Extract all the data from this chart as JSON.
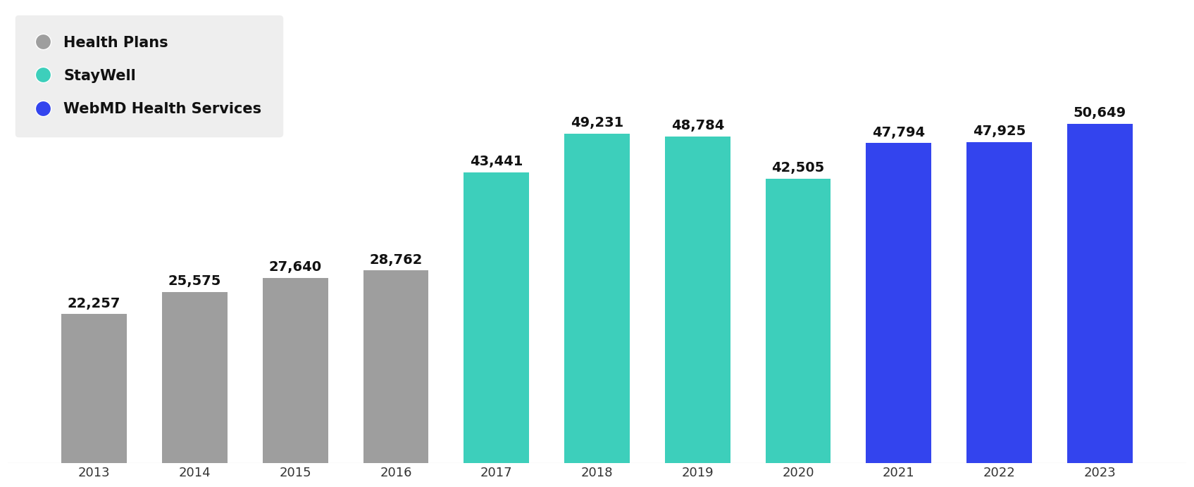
{
  "years": [
    "2013",
    "2014",
    "2015",
    "2016",
    "2017",
    "2018",
    "2019",
    "2020",
    "2021",
    "2022",
    "2023"
  ],
  "values": [
    22257,
    25575,
    27640,
    28762,
    43441,
    49231,
    48784,
    42505,
    47794,
    47925,
    50649
  ],
  "bar_colors": [
    "#9E9E9E",
    "#9E9E9E",
    "#9E9E9E",
    "#9E9E9E",
    "#3DCFBB",
    "#3DCFBB",
    "#3DCFBB",
    "#3DCFBB",
    "#3344EE",
    "#3344EE",
    "#3344EE"
  ],
  "labels": [
    "22,257",
    "25,575",
    "27,640",
    "28,762",
    "43,441",
    "49,231",
    "48,784",
    "42,505",
    "47,794",
    "47,925",
    "50,649"
  ],
  "legend": [
    {
      "label": "Health Plans",
      "color": "#9E9E9E"
    },
    {
      "label": "StayWell",
      "color": "#3DCFBB"
    },
    {
      "label": "WebMD Health Services",
      "color": "#3344EE"
    }
  ],
  "ylim": [
    0,
    68000
  ],
  "background_color": "#ffffff",
  "legend_bg": "#eeeeee",
  "bar_width": 0.65,
  "label_fontsize": 14,
  "tick_fontsize": 13,
  "legend_fontsize": 15
}
